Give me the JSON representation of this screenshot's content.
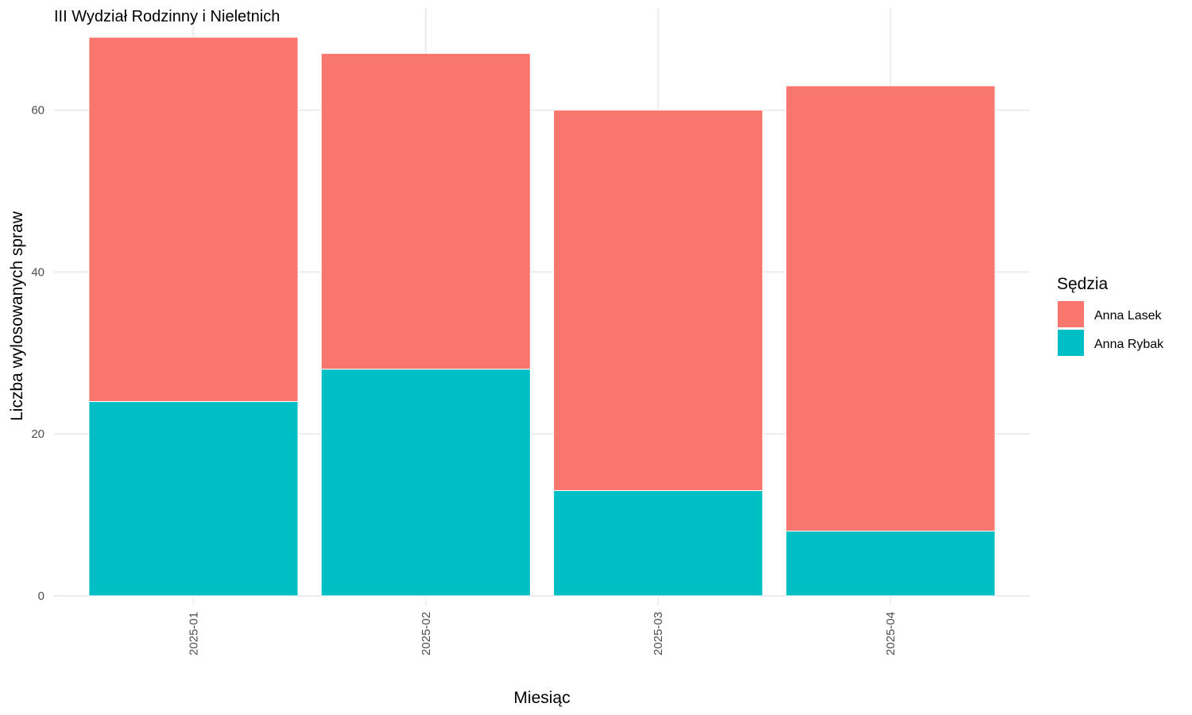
{
  "chart_data": {
    "type": "bar",
    "stacked": true,
    "title": "III Wydział Rodzinny i Nieletnich",
    "xlabel": "Miesiąc",
    "ylabel": "Liczba wylosowanych spraw",
    "categories": [
      "2025-01",
      "2025-02",
      "2025-03",
      "2025-04"
    ],
    "series": [
      {
        "name": "Anna Rybak",
        "values": [
          24,
          28,
          13,
          8
        ],
        "color": "#00BFC4"
      },
      {
        "name": "Anna Lasek",
        "values": [
          45,
          39,
          47,
          55
        ],
        "color": "#F8766D"
      }
    ],
    "ylim": [
      0,
      69
    ],
    "yticks": [
      0,
      20,
      40,
      60
    ],
    "x_tick_rotation": -90,
    "grid": true,
    "legend": {
      "title": "Sędzia",
      "placement": "right",
      "entries": [
        {
          "name": "Anna Lasek",
          "color": "#F8766D"
        },
        {
          "name": "Anna Rybak",
          "color": "#00BFC4"
        }
      ]
    }
  }
}
